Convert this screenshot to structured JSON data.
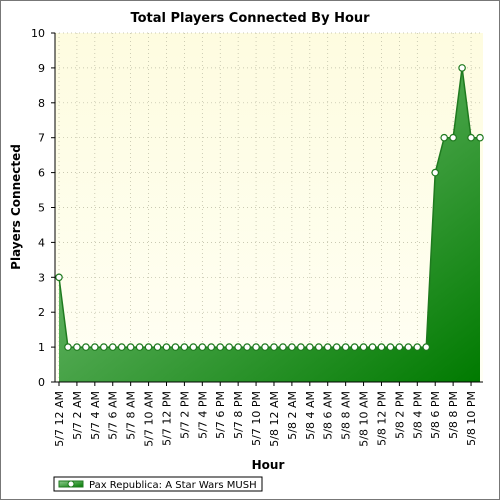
{
  "chart_data": {
    "type": "area",
    "title": "Total Players Connected By Hour",
    "xlabel": "Hour",
    "ylabel": "Players Connected",
    "ylim": [
      0,
      10
    ],
    "yticks": [
      0,
      1,
      2,
      3,
      4,
      5,
      6,
      7,
      8,
      9,
      10
    ],
    "grid": true,
    "legend_position": "bottom-left",
    "colors": {
      "plot_bg_top": "#fefce0",
      "plot_bg_bottom": "#fffff4",
      "area_light": "#8fcc8f",
      "area_dark": "#007a00",
      "line": "#1f7a1f",
      "marker_fill": "#ffffff",
      "grid": "#b8b8a0"
    },
    "xtick_labels": [
      "5/7 12 AM",
      "5/7 2 AM",
      "5/7 4 AM",
      "5/7 6 AM",
      "5/7 8 AM",
      "5/7 10 AM",
      "5/7 12 PM",
      "5/7 2 PM",
      "5/7 4 PM",
      "5/7 6 PM",
      "5/7 8 PM",
      "5/7 10 PM",
      "5/8 12 AM",
      "5/8 2 AM",
      "5/8 4 AM",
      "5/8 6 AM",
      "5/8 8 AM",
      "5/8 10 AM",
      "5/8 12 PM",
      "5/8 2 PM",
      "5/8 4 PM",
      "5/8 6 PM",
      "5/8 8 PM",
      "5/8 10 PM"
    ],
    "series": [
      {
        "name": "Pax Republica: A Star Wars MUSH",
        "values": [
          3,
          1,
          1,
          1,
          1,
          1,
          1,
          1,
          1,
          1,
          1,
          1,
          1,
          1,
          1,
          1,
          1,
          1,
          1,
          1,
          1,
          1,
          1,
          1,
          1,
          1,
          1,
          1,
          1,
          1,
          1,
          1,
          1,
          1,
          1,
          1,
          1,
          1,
          1,
          1,
          1,
          1,
          6,
          7,
          7,
          9,
          7,
          7
        ]
      }
    ]
  }
}
